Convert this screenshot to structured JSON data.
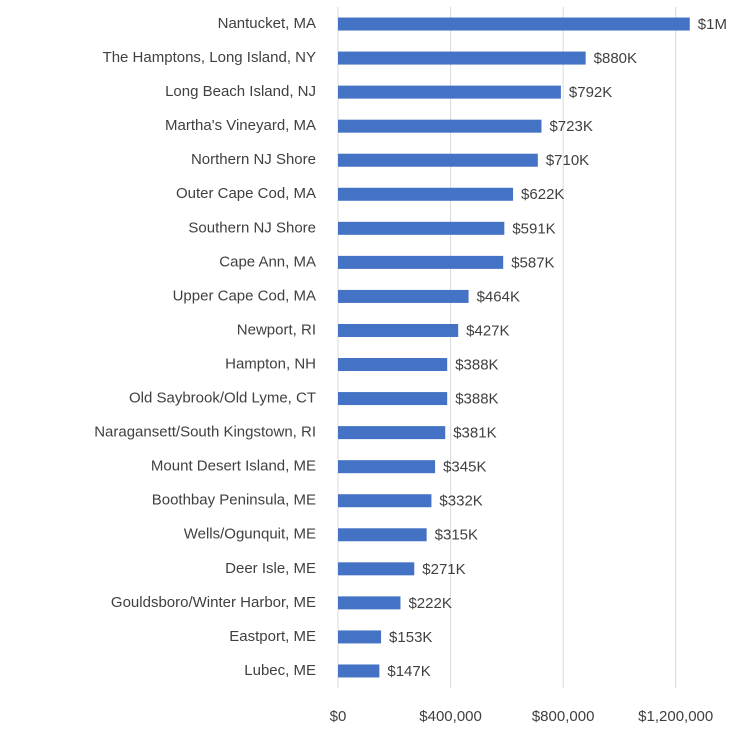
{
  "chart_data": {
    "type": "barh",
    "categories": [
      "Nantucket, MA",
      "The Hamptons, Long Island, NY",
      "Long Beach Island, NJ",
      "Martha's Vineyard, MA",
      "Northern NJ Shore",
      "Outer Cape Cod, MA",
      "Southern NJ Shore",
      "Cape Ann, MA",
      "Upper Cape Cod, MA",
      "Newport, RI",
      "Hampton, NH",
      "Old Saybrook/Old Lyme, CT",
      "Naragansett/South Kingstown, RI",
      "Mount Desert Island, ME",
      "Boothbay Peninsula, ME",
      "Wells/Ogunquit, ME",
      "Deer Isle, ME",
      "Gouldsboro/Winter Harbor, ME",
      "Eastport, ME",
      "Lubec, ME"
    ],
    "values": [
      1250000,
      880000,
      792000,
      723000,
      710000,
      622000,
      591000,
      587000,
      464000,
      427000,
      388000,
      388000,
      381000,
      345000,
      332000,
      315000,
      271000,
      222000,
      153000,
      147000
    ],
    "value_labels": [
      "$1M",
      "$880K",
      "$792K",
      "$723K",
      "$710K",
      "$622K",
      "$591K",
      "$587K",
      "$464K",
      "$427K",
      "$388K",
      "$388K",
      "$381K",
      "$345K",
      "$332K",
      "$315K",
      "$271K",
      "$222K",
      "$153K",
      "$147K"
    ],
    "color": "#4472c4",
    "xlim": [
      0,
      1400000
    ],
    "xticks": [
      {
        "value": 0,
        "label": "$0"
      },
      {
        "value": 400000,
        "label": "$400,000"
      },
      {
        "value": 800000,
        "label": "$800,000"
      },
      {
        "value": 1200000,
        "label": "$1,200,000"
      }
    ],
    "grid": true
  }
}
